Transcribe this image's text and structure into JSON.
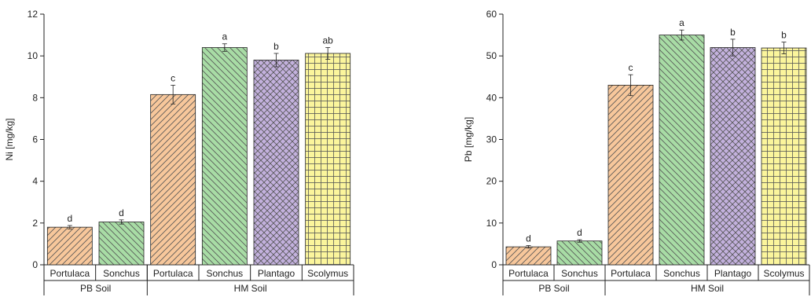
{
  "chart_data": [
    {
      "type": "bar",
      "ylabel": "Ni [mg/kg]",
      "ylim": [
        0,
        12
      ],
      "yticks": [
        0,
        2,
        4,
        6,
        8,
        10,
        12
      ],
      "groups": [
        {
          "label": "PB Soil",
          "count": 2
        },
        {
          "label": "HM Soil",
          "count": 4
        }
      ],
      "bars": [
        {
          "category": "Portulaca",
          "group": "PB Soil",
          "value": 1.8,
          "error": 0.08,
          "letter": "d",
          "pattern": "portulaca"
        },
        {
          "category": "Sonchus",
          "group": "PB Soil",
          "value": 2.05,
          "error": 0.1,
          "letter": "d",
          "pattern": "sonchus"
        },
        {
          "category": "Portulaca",
          "group": "HM Soil",
          "value": 8.15,
          "error": 0.45,
          "letter": "c",
          "pattern": "portulaca"
        },
        {
          "category": "Sonchus",
          "group": "HM Soil",
          "value": 10.4,
          "error": 0.18,
          "letter": "a",
          "pattern": "sonchus"
        },
        {
          "category": "Plantago",
          "group": "HM Soil",
          "value": 9.8,
          "error": 0.32,
          "letter": "b",
          "pattern": "plantago"
        },
        {
          "category": "Scolymus",
          "group": "HM Soil",
          "value": 10.12,
          "error": 0.28,
          "letter": "ab",
          "pattern": "scolymus"
        }
      ]
    },
    {
      "type": "bar",
      "ylabel": "Pb [mg/kg]",
      "ylim": [
        0,
        60
      ],
      "yticks": [
        0,
        10,
        20,
        30,
        40,
        50,
        60
      ],
      "groups": [
        {
          "label": "PB Soil",
          "count": 2
        },
        {
          "label": "HM Soil",
          "count": 4
        }
      ],
      "bars": [
        {
          "category": "Portulaca",
          "group": "PB Soil",
          "value": 4.3,
          "error": 0.3,
          "letter": "d",
          "pattern": "portulaca"
        },
        {
          "category": "Sonchus",
          "group": "PB Soil",
          "value": 5.7,
          "error": 0.3,
          "letter": "d",
          "pattern": "sonchus"
        },
        {
          "category": "Portulaca",
          "group": "HM Soil",
          "value": 43.0,
          "error": 2.5,
          "letter": "c",
          "pattern": "portulaca"
        },
        {
          "category": "Sonchus",
          "group": "HM Soil",
          "value": 55.0,
          "error": 1.2,
          "letter": "a",
          "pattern": "sonchus"
        },
        {
          "category": "Plantago",
          "group": "HM Soil",
          "value": 52.0,
          "error": 2.0,
          "letter": "b",
          "pattern": "plantago"
        },
        {
          "category": "Scolymus",
          "group": "HM Soil",
          "value": 51.9,
          "error": 1.4,
          "letter": "b",
          "pattern": "scolymus"
        }
      ]
    }
  ],
  "colors": {
    "portulaca": "#f7c79b",
    "sonchus": "#a8dca5",
    "plantago": "#c3b1dd",
    "scolymus": "#fbf59c",
    "axis": "#222222",
    "hatch": "#555555"
  }
}
